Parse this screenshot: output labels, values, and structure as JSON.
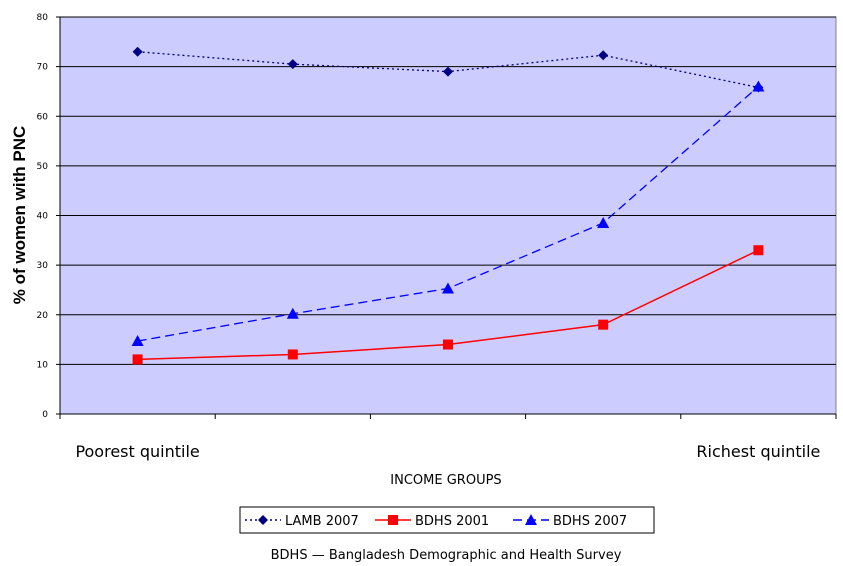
{
  "chart_data": {
    "type": "line",
    "ylabel": "% of women with PNC",
    "xlabel": "INCOME GROUPS",
    "ylim": [
      0,
      80
    ],
    "y_ticks": [
      "0",
      "10",
      "20",
      "30",
      "40",
      "50",
      "60",
      "70",
      "80"
    ],
    "x_labels": [
      "Poorest quintile",
      "",
      "",
      "",
      "Richest quintile"
    ],
    "grid": "horizontal",
    "legend_position": "bottom",
    "plot_background": "#ccccff",
    "series": [
      {
        "name": "LAMB 2007",
        "values": [
          73,
          70.5,
          69,
          72.3,
          65.8
        ],
        "color": "#000080",
        "line_style": "dotted",
        "marker": "diamond"
      },
      {
        "name": "BDHS 2001",
        "values": [
          11,
          12,
          14,
          18,
          33
        ],
        "color": "#ff0000",
        "line_style": "solid",
        "marker": "square"
      },
      {
        "name": "BDHS 2007",
        "values": [
          14.7,
          20.2,
          25.3,
          38.5,
          66
        ],
        "color": "#0000ff",
        "line_style": "dashed",
        "marker": "triangle"
      }
    ],
    "footnote": "BDHS — Bangladesh Demographic and Health Survey"
  }
}
